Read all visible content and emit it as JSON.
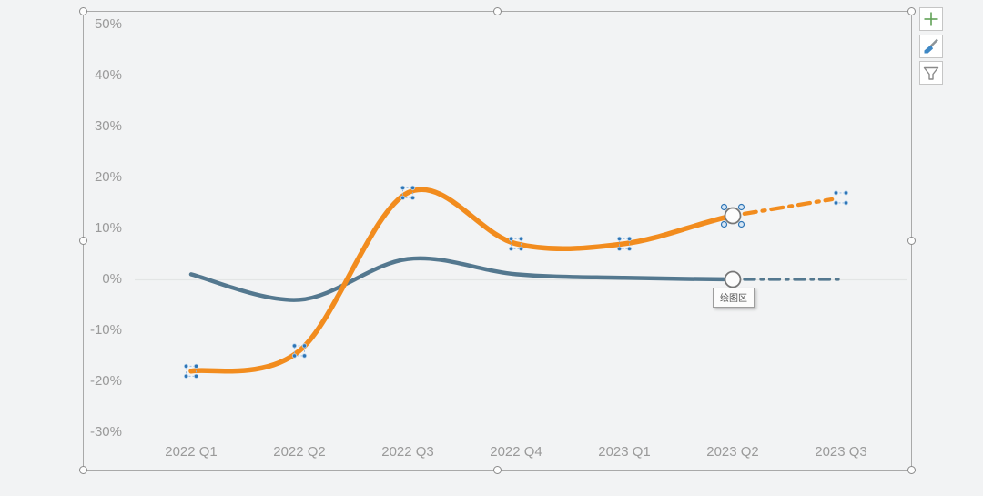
{
  "app": {
    "background_color": "#f2f3f4",
    "selection_frame": "chart-object-selected",
    "axis_label_color": "#9a9a9a",
    "zero_gridline_color": "#e3e5e5",
    "selection_handle_blue": "#2e75b6"
  },
  "tooltip": {
    "text": "绘图区"
  },
  "chart_tools": {
    "buttons": [
      {
        "name": "chart-elements",
        "icon": "plus-icon",
        "accent": "#61a257"
      },
      {
        "name": "chart-styles",
        "icon": "brush-icon",
        "accent": "#3f88c5"
      },
      {
        "name": "chart-filters",
        "icon": "funnel-icon",
        "accent": "#8a8a8a"
      }
    ]
  },
  "chart_data": {
    "type": "line",
    "title": "",
    "xlabel": "",
    "ylabel": "",
    "grid": "zero-line-only",
    "legend": "none",
    "categories": [
      "2022 Q1",
      "2022 Q2",
      "2022 Q3",
      "2022 Q4",
      "2023 Q1",
      "2023 Q2",
      "2023 Q3"
    ],
    "y_axis": {
      "ticks": [
        50,
        40,
        30,
        20,
        10,
        0,
        -10,
        -20,
        -30
      ],
      "format": "percent",
      "min": -30,
      "max": 50
    },
    "series": [
      {
        "name": "blue-series",
        "color": "#54788f",
        "stroke_width": 4.5,
        "values": [
          1,
          -4,
          4,
          1,
          0.3,
          0,
          0
        ],
        "smooth": true,
        "forecast_from_index": 5,
        "forecast_dash": "11 7 2.5 7",
        "open_circle_index": 5,
        "selected": false
      },
      {
        "name": "orange-series",
        "color": "#f28c1e",
        "stroke_width": 5.5,
        "values": [
          -18,
          -14,
          17,
          7,
          7,
          12.5,
          16
        ],
        "smooth": true,
        "forecast_from_index": 5,
        "forecast_dash": "13 7 3 7",
        "open_circle_index": 5,
        "selected": true
      }
    ]
  }
}
